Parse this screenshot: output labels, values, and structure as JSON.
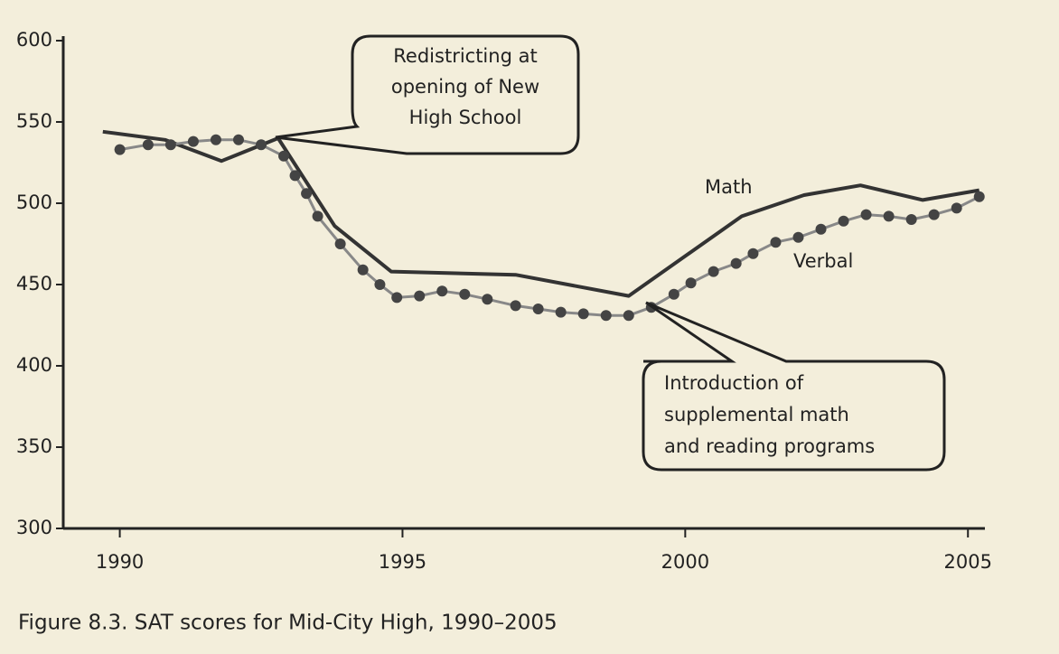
{
  "chart_data": {
    "type": "line",
    "title": "Figure 8.3. SAT scores for Mid-City High, 1990–2005",
    "xlim": [
      1989,
      2005.3
    ],
    "xticks": [
      1990,
      1995,
      2000,
      2005
    ],
    "ylim": [
      300,
      600
    ],
    "yticks": [
      300,
      350,
      400,
      450,
      500,
      550,
      600
    ],
    "series": [
      {
        "name": "Math",
        "color": "#333333",
        "style": "solid",
        "x": [
          1989.7,
          1990.8,
          1991.8,
          1992.8,
          1993.8,
          1994.8,
          1997.0,
          1999.0,
          2001.0,
          2002.1,
          2003.1,
          2004.2,
          2005.2
        ],
        "values": [
          544,
          539,
          526,
          540,
          486,
          458,
          456,
          443,
          492,
          505,
          511,
          502,
          508
        ]
      },
      {
        "name": "Verbal",
        "color": "#888888",
        "dot_color": "#444444",
        "style": "dotted",
        "x": [
          1990.0,
          1990.5,
          1990.9,
          1991.3,
          1991.7,
          1992.1,
          1992.5,
          1992.9,
          1993.1,
          1993.3,
          1993.5,
          1993.9,
          1994.3,
          1994.6,
          1994.9,
          1995.3,
          1995.7,
          1996.1,
          1996.5,
          1997.0,
          1997.4,
          1997.8,
          1998.2,
          1998.6,
          1999.0,
          1999.4,
          1999.8,
          2000.1,
          2000.5,
          2000.9,
          2001.2,
          2001.6,
          2002.0,
          2002.4,
          2002.8,
          2003.2,
          2003.6,
          2004.0,
          2004.4,
          2004.8,
          2005.2
        ],
        "values": [
          533,
          536,
          536,
          538,
          539,
          539,
          536,
          529,
          517,
          506,
          492,
          475,
          459,
          450,
          442,
          443,
          446,
          444,
          441,
          437,
          435,
          433,
          432,
          431,
          431,
          436,
          444,
          451,
          458,
          463,
          469,
          476,
          479,
          484,
          489,
          493,
          492,
          490,
          493,
          497,
          504
        ]
      }
    ],
    "annotations": [
      {
        "lines": [
          "Redistricting at",
          "opening of New",
          "High School"
        ]
      },
      {
        "lines": [
          "Introduction of",
          "supplemental math",
          "and reading programs"
        ]
      }
    ]
  }
}
